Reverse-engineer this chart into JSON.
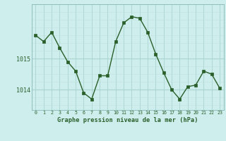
{
  "x": [
    0,
    1,
    2,
    3,
    4,
    5,
    6,
    7,
    8,
    9,
    10,
    11,
    12,
    13,
    14,
    15,
    16,
    17,
    18,
    19,
    20,
    21,
    22,
    23
  ],
  "y": [
    1015.75,
    1015.55,
    1015.85,
    1015.35,
    1014.9,
    1014.6,
    1013.9,
    1013.7,
    1014.45,
    1014.45,
    1015.55,
    1016.15,
    1016.35,
    1016.3,
    1015.85,
    1015.15,
    1014.55,
    1014.0,
    1013.7,
    1014.1,
    1014.15,
    1014.6,
    1014.5,
    1014.05
  ],
  "line_color": "#2a5f2a",
  "marker_color": "#2a5f2a",
  "bg_color": "#ceeeed",
  "grid_color_major": "#aad4d0",
  "grid_color_minor": "#bfe0dc",
  "xlabel": "Graphe pression niveau de la mer (hPa)",
  "xlabel_color": "#2a5f2a",
  "ytick_labels": [
    "1014",
    "1015"
  ],
  "ytick_values": [
    1014.0,
    1015.0
  ],
  "ylim": [
    1013.35,
    1016.75
  ],
  "xlim": [
    -0.5,
    23.5
  ],
  "xtick_values": [
    0,
    1,
    2,
    3,
    4,
    5,
    6,
    7,
    8,
    9,
    10,
    11,
    12,
    13,
    14,
    15,
    16,
    17,
    18,
    19,
    20,
    21,
    22,
    23
  ],
  "xtick_labels": [
    "0",
    "1",
    "2",
    "3",
    "4",
    "5",
    "6",
    "7",
    "8",
    "9",
    "10",
    "11",
    "12",
    "13",
    "14",
    "15",
    "16",
    "17",
    "18",
    "19",
    "20",
    "21",
    "22",
    "23"
  ]
}
